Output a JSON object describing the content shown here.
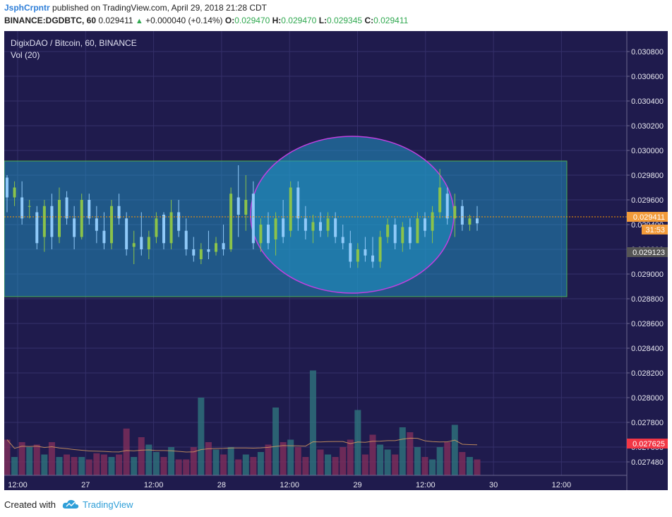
{
  "header": {
    "user": "JsphCrpntr",
    "published": "published on TradingView.com, April 29, 2018 21:28 CDT",
    "symbol": "BINANCE:DGDBTC, 60",
    "last": "0.029411",
    "change": "+0.000040 (+0.14%)",
    "o_label": "O:",
    "o": "0.029470",
    "h_label": "H:",
    "h": "0.029470",
    "l_label": "L:",
    "l": "0.029345",
    "c_label": "C:",
    "c": "0.029411"
  },
  "legend": {
    "title": "DigixDAO / Bitcoin, 60, BINANCE",
    "vol": "Vol (20)"
  },
  "footer": {
    "created": "Created with",
    "brand": "TradingView"
  },
  "colors": {
    "bg": "#1f1b4d",
    "up": "#8bc34a",
    "down": "#90caf9",
    "vol_up": "#2e6e7a",
    "vol_down": "#7a2d5a",
    "rect_fill": "#2196c4",
    "rect_border": "#4caf50",
    "ellipse_border": "#c040e0",
    "price_line": "#ff9800",
    "last_label": "#f29b3a",
    "marker_label": "#555555",
    "vol_label": "#f23645"
  },
  "chart_data": {
    "type": "candlestick",
    "title": "DigixDAO / Bitcoin, 60, BINANCE",
    "y_ticks": [
      "0.030800",
      "0.030600",
      "0.030400",
      "0.030200",
      "0.030000",
      "0.029800",
      "0.029600",
      "0.029400",
      "0.029200",
      "0.029000",
      "0.028800",
      "0.028600",
      "0.028400",
      "0.028200",
      "0.028000",
      "0.027800",
      "0.027600",
      "0.027480"
    ],
    "x_ticks": [
      "12:00",
      "27",
      "12:00",
      "28",
      "12:00",
      "29",
      "12:00",
      "30",
      "12:00"
    ],
    "last_price_label": "0.029411",
    "countdown_label": "31:53",
    "marker_price_label": "0.029123",
    "volume_ma_label": "0.027625",
    "ylim": [
      0.02737,
      0.03088
    ],
    "candles": [
      [
        0.02978,
        0.0298,
        0.0295,
        0.02962
      ],
      [
        0.02962,
        0.02975,
        0.02955,
        0.0297
      ],
      [
        0.02962,
        0.02975,
        0.0294,
        0.02945
      ],
      [
        0.02955,
        0.0296,
        0.02945,
        0.02955
      ],
      [
        0.0295,
        0.02955,
        0.0292,
        0.02925
      ],
      [
        0.0293,
        0.0296,
        0.02918,
        0.02955
      ],
      [
        0.02955,
        0.02965,
        0.0292,
        0.0293
      ],
      [
        0.0293,
        0.0297,
        0.02925,
        0.0296
      ],
      [
        0.02962,
        0.02967,
        0.0294,
        0.02945
      ],
      [
        0.02945,
        0.02955,
        0.0292,
        0.0293
      ],
      [
        0.0293,
        0.02965,
        0.02928,
        0.0296
      ],
      [
        0.0296,
        0.02965,
        0.0294,
        0.02945
      ],
      [
        0.02945,
        0.02955,
        0.02925,
        0.02935
      ],
      [
        0.02935,
        0.0295,
        0.0292,
        0.02925
      ],
      [
        0.02925,
        0.0296,
        0.0292,
        0.02955
      ],
      [
        0.02955,
        0.02965,
        0.0294,
        0.02945
      ],
      [
        0.02945,
        0.0295,
        0.02915,
        0.0292
      ],
      [
        0.02922,
        0.02935,
        0.02908,
        0.02925
      ],
      [
        0.0293,
        0.0295,
        0.02915,
        0.0292
      ],
      [
        0.0292,
        0.02935,
        0.02912,
        0.0293
      ],
      [
        0.0293,
        0.0295,
        0.02925,
        0.02945
      ],
      [
        0.02948,
        0.0295,
        0.0292,
        0.02925
      ],
      [
        0.02925,
        0.0296,
        0.0292,
        0.0295
      ],
      [
        0.0295,
        0.0296,
        0.0293,
        0.02935
      ],
      [
        0.02935,
        0.02945,
        0.02915,
        0.0292
      ],
      [
        0.0292,
        0.0293,
        0.0291,
        0.02915
      ],
      [
        0.02912,
        0.02925,
        0.02908,
        0.0292
      ],
      [
        0.0292,
        0.02935,
        0.02912,
        0.02918
      ],
      [
        0.02918,
        0.0293,
        0.02915,
        0.02925
      ],
      [
        0.02925,
        0.0294,
        0.02915,
        0.0292
      ],
      [
        0.0292,
        0.0297,
        0.02918,
        0.02965
      ],
      [
        0.02962,
        0.02988,
        0.0293,
        0.02948
      ],
      [
        0.02948,
        0.0298,
        0.02935,
        0.0296
      ],
      [
        0.02965,
        0.02975,
        0.0292,
        0.02925
      ],
      [
        0.02925,
        0.02945,
        0.02918,
        0.0294
      ],
      [
        0.0294,
        0.0295,
        0.0292,
        0.02925
      ],
      [
        0.02928,
        0.0295,
        0.02915,
        0.02945
      ],
      [
        0.02945,
        0.0296,
        0.02925,
        0.0293
      ],
      [
        0.02935,
        0.02975,
        0.0293,
        0.0297
      ],
      [
        0.0297,
        0.02975,
        0.02935,
        0.02945
      ],
      [
        0.02945,
        0.02955,
        0.02928,
        0.02935
      ],
      [
        0.02935,
        0.02948,
        0.02925,
        0.02942
      ],
      [
        0.02942,
        0.0295,
        0.0293,
        0.02935
      ],
      [
        0.02935,
        0.0295,
        0.0293,
        0.02945
      ],
      [
        0.02945,
        0.0295,
        0.02925,
        0.0293
      ],
      [
        0.0293,
        0.0294,
        0.0292,
        0.02925
      ],
      [
        0.02925,
        0.02935,
        0.02905,
        0.0291
      ],
      [
        0.0291,
        0.02925,
        0.02905,
        0.0292
      ],
      [
        0.0292,
        0.0293,
        0.0291,
        0.02915
      ],
      [
        0.02915,
        0.0293,
        0.02905,
        0.0291
      ],
      [
        0.0291,
        0.02935,
        0.02905,
        0.0293
      ],
      [
        0.0293,
        0.02945,
        0.02925,
        0.0294
      ],
      [
        0.0294,
        0.02945,
        0.0292,
        0.02925
      ],
      [
        0.02925,
        0.02942,
        0.02918,
        0.02938
      ],
      [
        0.02938,
        0.02945,
        0.0292,
        0.02925
      ],
      [
        0.02925,
        0.0295,
        0.02925,
        0.02945
      ],
      [
        0.02945,
        0.0295,
        0.0293,
        0.02935
      ],
      [
        0.02935,
        0.02955,
        0.02925,
        0.0295
      ],
      [
        0.0295,
        0.02985,
        0.02945,
        0.0297
      ],
      [
        0.02965,
        0.0297,
        0.0294,
        0.02945
      ],
      [
        0.02945,
        0.02965,
        0.0293,
        0.02955
      ],
      [
        0.02955,
        0.0296,
        0.02935,
        0.0294
      ],
      [
        0.0294,
        0.02948,
        0.02935,
        0.02945
      ],
      [
        0.02945,
        0.02955,
        0.02935,
        0.02941
      ]
    ],
    "volumes": [
      0.02766,
      0.02752,
      0.02764,
      0.0276,
      0.02762,
      0.02754,
      0.02764,
      0.02752,
      0.02754,
      0.02752,
      0.02752,
      0.0275,
      0.02755,
      0.02754,
      0.02752,
      0.02754,
      0.02775,
      0.02752,
      0.02768,
      0.02762,
      0.02756,
      0.02752,
      0.0276,
      0.0275,
      0.0275,
      0.0276,
      0.028,
      0.02764,
      0.02758,
      0.02754,
      0.0276,
      0.0275,
      0.02754,
      0.02752,
      0.02756,
      0.02762,
      0.02792,
      0.02764,
      0.02766,
      0.0276,
      0.02752,
      0.02822,
      0.02758,
      0.02754,
      0.02752,
      0.0276,
      0.02766,
      0.0279,
      0.02754,
      0.0277,
      0.02762,
      0.02758,
      0.02754,
      0.02776,
      0.02772,
      0.0276,
      0.02752,
      0.0275,
      0.0276,
      0.02764,
      0.02778,
      0.02756,
      0.02752,
      0.0275
    ]
  }
}
